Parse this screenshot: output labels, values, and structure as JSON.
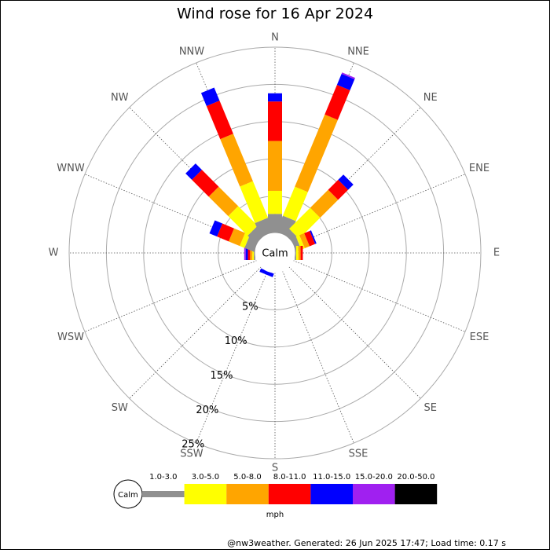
{
  "chart_data": {
    "type": "windrose",
    "title": "Wind rose for 16 Apr 2024",
    "categories": [
      "N",
      "NNE",
      "NE",
      "ENE",
      "E",
      "ESE",
      "SE",
      "SSE",
      "S",
      "SSW",
      "SW",
      "WSW",
      "W",
      "WNW",
      "NW",
      "NNW"
    ],
    "calm_label": "Calm",
    "unit": "mph",
    "rlim": [
      0,
      25
    ],
    "rticks": [
      {
        "value": 5,
        "label": "5%"
      },
      {
        "value": 10,
        "label": "10%"
      },
      {
        "value": 15,
        "label": "15%"
      },
      {
        "value": 20,
        "label": "20%"
      },
      {
        "value": 25,
        "label": "25%"
      }
    ],
    "series": [
      {
        "name": "1.0-3.0",
        "color": "#909090",
        "values": [
          2.6,
          2.4,
          1.0,
          0.8,
          0.2,
          0,
          0,
          0,
          0,
          0,
          0,
          0,
          0.2,
          1.4,
          1.6,
          2.1
        ]
      },
      {
        "name": "3.0-5.0",
        "color": "#ffff00",
        "values": [
          3.1,
          4.2,
          4.0,
          0.5,
          0.3,
          0,
          0,
          0,
          0,
          0,
          0,
          0,
          0.2,
          0.7,
          3.7,
          5.3
        ]
      },
      {
        "name": "5.0-8.0",
        "color": "#ffa500",
        "values": [
          6.7,
          10.5,
          3.4,
          0.7,
          0.3,
          0,
          0,
          0,
          0,
          0,
          0,
          0,
          0.3,
          1.6,
          3.7,
          6.9
        ]
      },
      {
        "name": "8.0-11.0",
        "color": "#ff0000",
        "values": [
          5.3,
          4.3,
          1.9,
          0.8,
          0.3,
          0,
          0,
          0,
          0,
          0,
          0,
          0,
          0.3,
          1.7,
          3.2,
          4.8
        ]
      },
      {
        "name": "11.0-15.0",
        "color": "#0000ff",
        "values": [
          1.1,
          1.6,
          1.0,
          0.2,
          0,
          0,
          0,
          0,
          0,
          0.5,
          0,
          0,
          0.3,
          1.1,
          1.2,
          1.9
        ]
      },
      {
        "name": "15.0-20.0",
        "color": "#a020f0",
        "values": [
          0,
          0.2,
          0,
          0,
          0,
          0,
          0,
          0,
          0,
          0,
          0,
          0,
          0.2,
          0,
          0,
          0
        ]
      },
      {
        "name": "20.0-50.0",
        "color": "#000000",
        "values": [
          0,
          0,
          0,
          0,
          0,
          0,
          0,
          0,
          0,
          0,
          0,
          0,
          0,
          0,
          0,
          0
        ]
      }
    ],
    "footer": "@nw3weather. Generated: 26 Jun 2025 17:47; Load time: 0.17 s"
  }
}
